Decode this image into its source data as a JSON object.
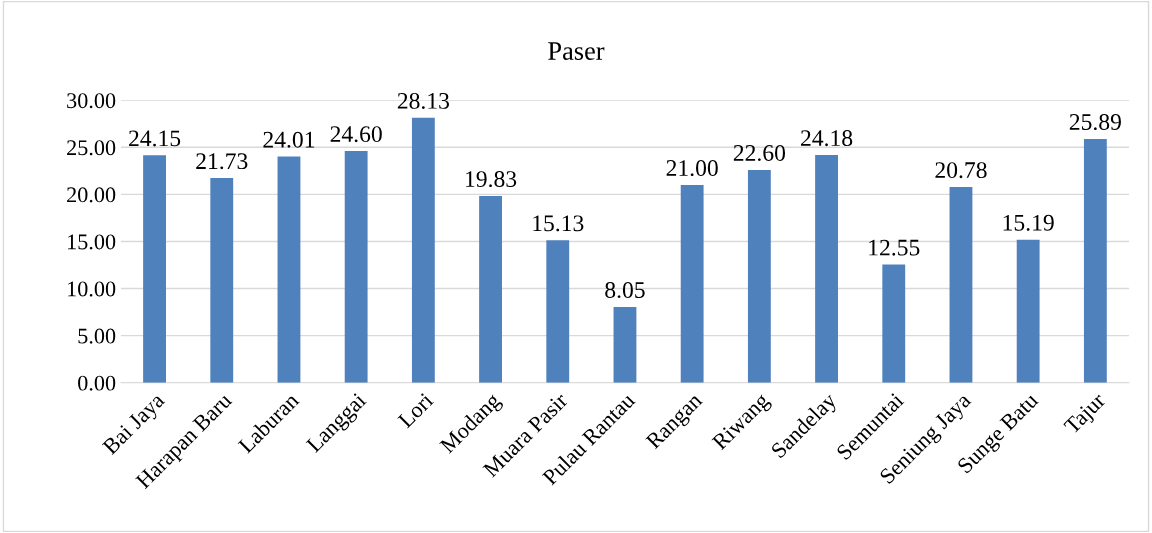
{
  "chart_data": {
    "type": "bar",
    "title": "Paser",
    "categories": [
      "Bai Jaya",
      "Harapan Baru",
      "Laburan",
      "Langgai",
      "Lori",
      "Modang",
      "Muara Pasir",
      "Pulau Rantau",
      "Rangan",
      "Riwang",
      "Sandelay",
      "Semuntai",
      "Seniung Jaya",
      "Sunge Batu",
      "Tajur"
    ],
    "values": [
      24.15,
      21.73,
      24.01,
      24.6,
      28.13,
      19.83,
      15.13,
      8.05,
      21.0,
      22.6,
      24.18,
      12.55,
      20.78,
      15.19,
      25.89
    ],
    "value_labels": [
      "24.15",
      "21.73",
      "24.01",
      "24.60",
      "28.13",
      "19.83",
      "15.13",
      "8.05",
      "21.00",
      "22.60",
      "24.18",
      "12.55",
      "20.78",
      "15.19",
      "25.89"
    ],
    "color": "#4f81bd",
    "ylim": [
      0,
      30
    ],
    "yticks": [
      {
        "value": 0,
        "label": "0.00"
      },
      {
        "value": 5,
        "label": "5.00"
      },
      {
        "value": 10,
        "label": "10.00"
      },
      {
        "value": 15,
        "label": "15.00"
      },
      {
        "value": 20,
        "label": "20.00"
      },
      {
        "value": 25,
        "label": "25.00"
      },
      {
        "value": 30,
        "label": "30.00"
      }
    ],
    "grid": "y",
    "legend": false
  }
}
